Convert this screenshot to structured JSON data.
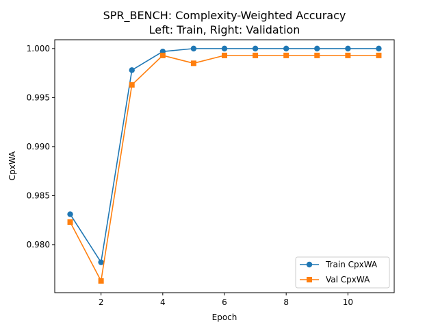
{
  "chart_data": {
    "type": "line",
    "title": "SPR_BENCH: Complexity-Weighted Accuracy",
    "subtitle": "Left: Train, Right: Validation",
    "xlabel": "Epoch",
    "ylabel": "CpxWA",
    "xlim": [
      0.5,
      11.5
    ],
    "ylim": [
      0.9751,
      1.0009
    ],
    "xticks": [
      2,
      4,
      6,
      8,
      10
    ],
    "yticks": [
      0.98,
      0.985,
      0.99,
      0.995,
      1.0
    ],
    "ytick_labels": [
      "0.980",
      "0.985",
      "0.990",
      "0.995",
      "1.000"
    ],
    "grid": false,
    "legend_position": "lower-right",
    "x": [
      1,
      2,
      3,
      4,
      5,
      6,
      7,
      8,
      9,
      10,
      11
    ],
    "series": [
      {
        "name": "Train CpxWA",
        "color": "#1f77b4",
        "marker": "circle",
        "values": [
          0.9831,
          0.9782,
          0.9978,
          0.9997,
          1.0,
          1.0,
          1.0,
          1.0,
          1.0,
          1.0,
          1.0
        ]
      },
      {
        "name": "Val CpxWA",
        "color": "#ff7f0e",
        "marker": "square",
        "values": [
          0.9823,
          0.9763,
          0.9963,
          0.9993,
          0.9985,
          0.9993,
          0.9993,
          0.9993,
          0.9993,
          0.9993,
          0.9993
        ]
      }
    ]
  }
}
